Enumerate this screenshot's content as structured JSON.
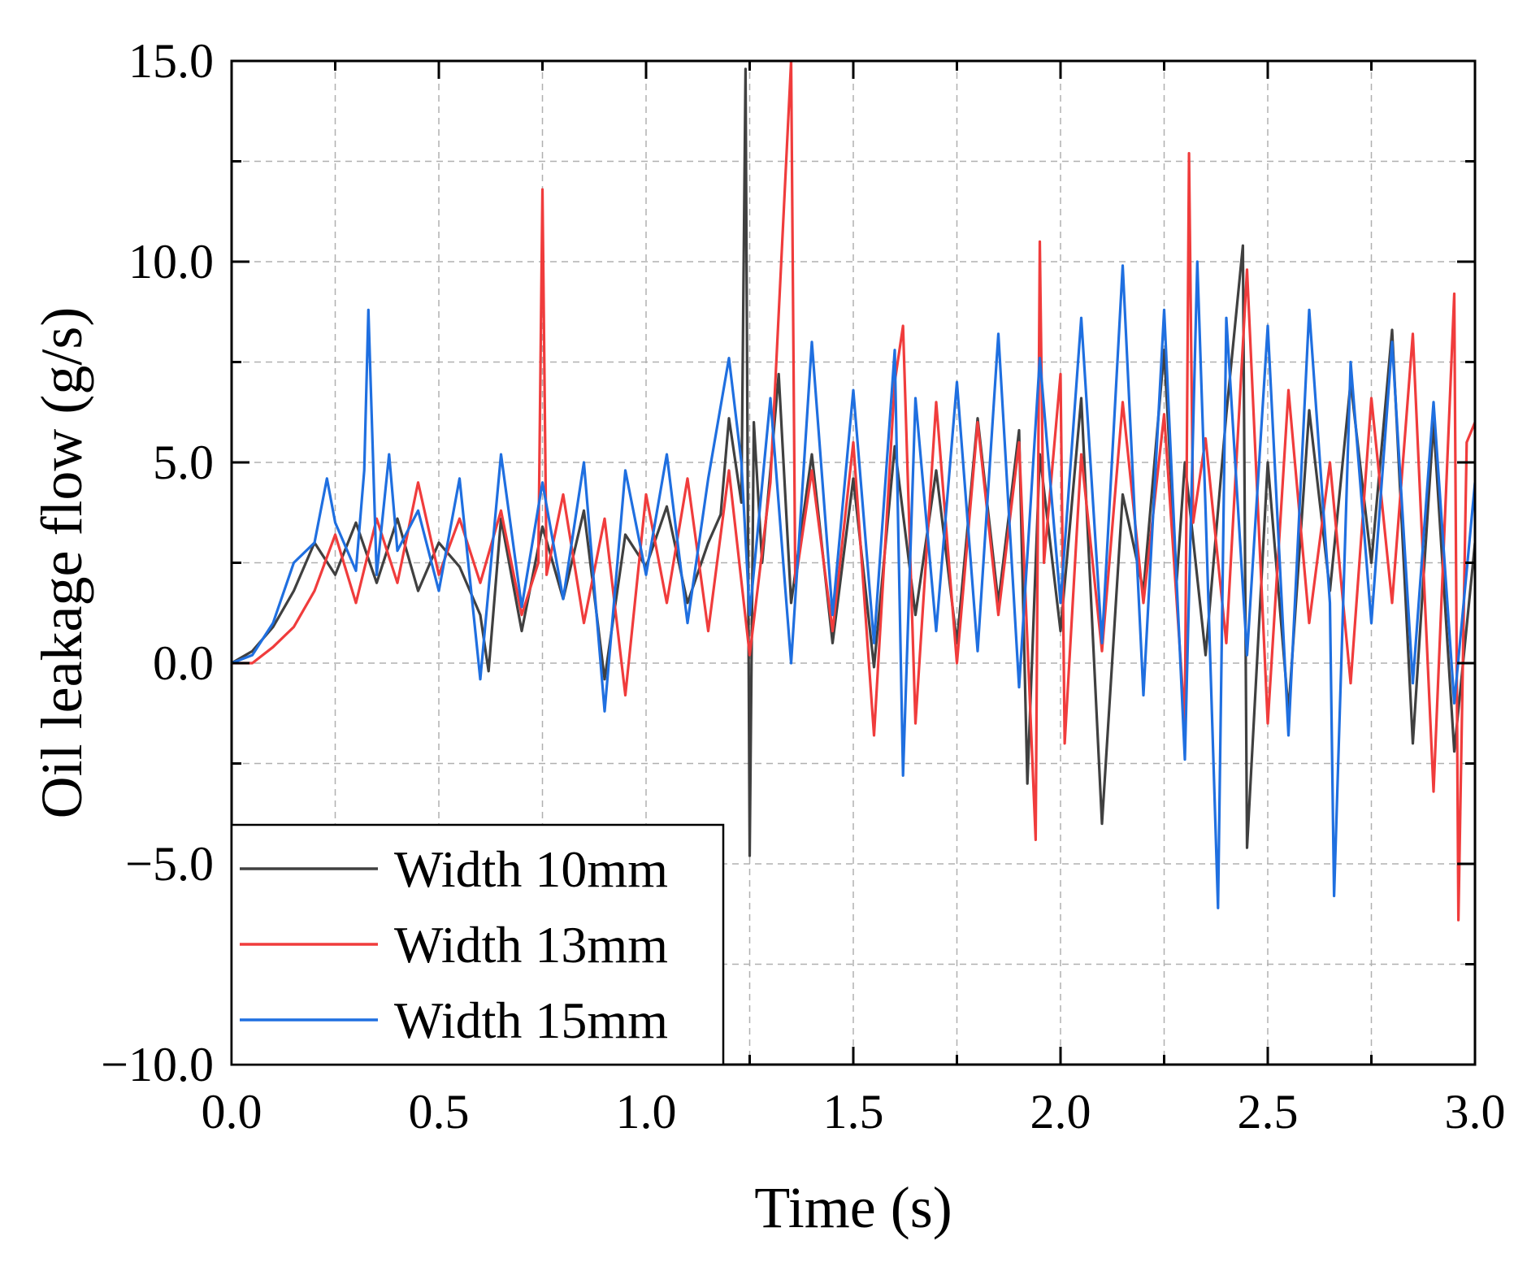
{
  "chart_data": {
    "type": "line",
    "xlabel": "Time (s)",
    "ylabel": "Oil leakage flow (g/s)",
    "xlim": [
      0,
      3.0
    ],
    "ylim": [
      -10.0,
      15.0
    ],
    "x_ticks": [
      0.0,
      0.5,
      1.0,
      1.5,
      2.0,
      2.5,
      3.0
    ],
    "x_tick_labels": [
      "0.0",
      "0.5",
      "1.0",
      "1.5",
      "2.0",
      "2.5",
      "3.0"
    ],
    "y_ticks": [
      -10.0,
      -5.0,
      0.0,
      5.0,
      10.0,
      15.0
    ],
    "y_tick_labels": [
      "−10.0",
      "−5.0",
      "0.0",
      "5.0",
      "10.0",
      "15.0"
    ],
    "grid": true,
    "legend_position": "bottom-left",
    "series": [
      {
        "name": "Width 10mm",
        "color": "#404040",
        "x": [
          0.0,
          0.05,
          0.1,
          0.15,
          0.2,
          0.25,
          0.3,
          0.35,
          0.4,
          0.45,
          0.5,
          0.55,
          0.6,
          0.62,
          0.65,
          0.7,
          0.75,
          0.8,
          0.85,
          0.9,
          0.95,
          1.0,
          1.05,
          1.1,
          1.15,
          1.18,
          1.2,
          1.23,
          1.24,
          1.25,
          1.26,
          1.28,
          1.3,
          1.32,
          1.35,
          1.4,
          1.45,
          1.5,
          1.55,
          1.6,
          1.65,
          1.7,
          1.75,
          1.8,
          1.85,
          1.9,
          1.92,
          1.95,
          2.0,
          2.05,
          2.1,
          2.15,
          2.2,
          2.25,
          2.28,
          2.3,
          2.35,
          2.4,
          2.44,
          2.45,
          2.5,
          2.55,
          2.6,
          2.65,
          2.7,
          2.75,
          2.8,
          2.85,
          2.9,
          2.95,
          3.0
        ],
        "values": [
          0.0,
          0.3,
          0.9,
          1.8,
          3.0,
          2.2,
          3.5,
          2.0,
          3.6,
          1.8,
          3.0,
          2.4,
          1.2,
          -0.2,
          3.6,
          0.8,
          3.4,
          1.6,
          3.8,
          -0.4,
          3.2,
          2.4,
          3.9,
          1.5,
          3.0,
          3.7,
          6.1,
          4.0,
          14.8,
          -4.8,
          6.0,
          2.5,
          4.8,
          7.2,
          1.5,
          5.2,
          0.5,
          4.6,
          -0.1,
          5.4,
          1.2,
          4.8,
          0.5,
          6.1,
          1.5,
          5.8,
          -3.0,
          5.2,
          0.8,
          6.6,
          -4.0,
          4.2,
          1.8,
          7.8,
          2.0,
          5.0,
          0.2,
          6.2,
          10.4,
          -4.6,
          5.0,
          -1.2,
          6.3,
          1.8,
          7.0,
          2.5,
          8.3,
          -2.0,
          6.0,
          -2.2,
          3.0
        ]
      },
      {
        "name": "Width 13mm",
        "color": "#f03c3c",
        "x": [
          0.0,
          0.05,
          0.1,
          0.15,
          0.2,
          0.25,
          0.3,
          0.35,
          0.4,
          0.45,
          0.5,
          0.55,
          0.6,
          0.65,
          0.7,
          0.74,
          0.75,
          0.76,
          0.8,
          0.85,
          0.9,
          0.95,
          1.0,
          1.05,
          1.1,
          1.15,
          1.2,
          1.25,
          1.3,
          1.35,
          1.36,
          1.4,
          1.45,
          1.5,
          1.55,
          1.6,
          1.62,
          1.65,
          1.7,
          1.75,
          1.8,
          1.85,
          1.9,
          1.94,
          1.95,
          1.96,
          2.0,
          2.01,
          2.05,
          2.1,
          2.15,
          2.2,
          2.25,
          2.3,
          2.31,
          2.32,
          2.35,
          2.4,
          2.45,
          2.5,
          2.55,
          2.6,
          2.65,
          2.7,
          2.75,
          2.8,
          2.85,
          2.9,
          2.95,
          2.96,
          2.98,
          3.0
        ],
        "values": [
          0.0,
          0.0,
          0.4,
          0.9,
          1.8,
          3.2,
          1.5,
          3.6,
          2.0,
          4.5,
          2.2,
          3.6,
          2.0,
          3.8,
          1.2,
          2.5,
          11.8,
          2.2,
          4.2,
          1.0,
          3.6,
          -0.8,
          4.2,
          1.5,
          4.6,
          0.8,
          4.8,
          0.2,
          4.5,
          15.0,
          2.0,
          4.8,
          0.8,
          5.5,
          -1.8,
          7.0,
          8.4,
          -1.5,
          6.5,
          0.0,
          6.0,
          1.2,
          5.5,
          -4.4,
          10.5,
          2.5,
          7.2,
          -2.0,
          5.2,
          0.3,
          6.5,
          1.5,
          6.2,
          -1.5,
          12.7,
          3.5,
          5.6,
          0.5,
          9.8,
          -1.5,
          6.8,
          1.0,
          5.0,
          -0.5,
          6.6,
          1.5,
          8.2,
          -3.2,
          9.2,
          -6.4,
          5.5,
          6.0
        ]
      },
      {
        "name": "Width 15mm",
        "color": "#1f6fe0",
        "x": [
          0.0,
          0.05,
          0.1,
          0.15,
          0.2,
          0.23,
          0.25,
          0.3,
          0.32,
          0.33,
          0.35,
          0.38,
          0.4,
          0.45,
          0.5,
          0.55,
          0.6,
          0.65,
          0.7,
          0.75,
          0.8,
          0.85,
          0.9,
          0.95,
          1.0,
          1.05,
          1.1,
          1.15,
          1.2,
          1.23,
          1.25,
          1.3,
          1.35,
          1.4,
          1.45,
          1.5,
          1.55,
          1.6,
          1.62,
          1.65,
          1.7,
          1.75,
          1.8,
          1.85,
          1.9,
          1.95,
          2.0,
          2.05,
          2.1,
          2.15,
          2.2,
          2.25,
          2.3,
          2.33,
          2.35,
          2.38,
          2.4,
          2.45,
          2.5,
          2.55,
          2.6,
          2.65,
          2.66,
          2.7,
          2.75,
          2.8,
          2.85,
          2.9,
          2.95,
          3.0
        ],
        "values": [
          0.0,
          0.2,
          1.0,
          2.5,
          3.0,
          4.6,
          3.5,
          2.3,
          4.8,
          8.8,
          2.2,
          5.2,
          2.8,
          3.8,
          1.8,
          4.6,
          -0.4,
          5.2,
          1.4,
          4.5,
          1.6,
          5.0,
          -1.2,
          4.8,
          2.2,
          5.2,
          1.0,
          4.6,
          7.6,
          5.0,
          1.2,
          6.6,
          0.0,
          8.0,
          1.2,
          6.8,
          0.5,
          7.8,
          -2.8,
          6.6,
          0.8,
          7.0,
          0.3,
          8.2,
          -0.6,
          7.6,
          1.5,
          8.6,
          0.5,
          9.9,
          -0.8,
          8.8,
          -2.4,
          10.0,
          3.8,
          -6.1,
          8.6,
          0.2,
          8.4,
          -1.8,
          8.8,
          1.5,
          -5.8,
          7.5,
          1.0,
          8.0,
          -0.5,
          6.5,
          -1.0,
          4.5
        ]
      }
    ]
  }
}
